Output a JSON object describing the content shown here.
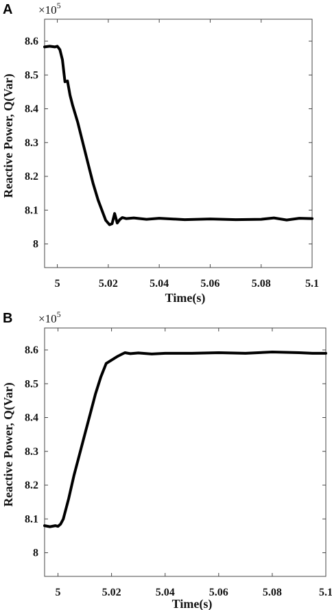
{
  "chart_data": [
    {
      "type": "line",
      "panel": "A",
      "multiplier": "×10",
      "multiplier_exp": "5",
      "xlabel": "Time(s)",
      "ylabel": "Reactive Power, Q(Var)",
      "xlim": [
        4.995,
        5.1
      ],
      "ylim": [
        7.93,
        8.665
      ],
      "xticks": [
        "5",
        "5.02",
        "5.04",
        "5.06",
        "5.08",
        "5.1"
      ],
      "xtick_values": [
        5.0,
        5.02,
        5.04,
        5.06,
        5.08,
        5.1
      ],
      "yticks": [
        "8",
        "8.1",
        "8.2",
        "8.3",
        "8.4",
        "8.5",
        "8.6"
      ],
      "ytick_values": [
        8.0,
        8.1,
        8.2,
        8.3,
        8.4,
        8.5,
        8.6
      ],
      "x": [
        4.995,
        4.997,
        4.999,
        5.0,
        5.001,
        5.002,
        5.003,
        5.004,
        5.005,
        5.006,
        5.008,
        5.01,
        5.012,
        5.014,
        5.016,
        5.018,
        5.019,
        5.0205,
        5.0215,
        5.0225,
        5.0235,
        5.0245,
        5.0255,
        5.027,
        5.03,
        5.035,
        5.04,
        5.05,
        5.06,
        5.07,
        5.08,
        5.085,
        5.09,
        5.095,
        5.1
      ],
      "values": [
        8.583,
        8.585,
        8.583,
        8.585,
        8.575,
        8.545,
        8.48,
        8.482,
        8.44,
        8.41,
        8.36,
        8.3,
        8.24,
        8.18,
        8.13,
        8.09,
        8.07,
        8.057,
        8.06,
        8.09,
        8.062,
        8.072,
        8.078,
        8.075,
        8.077,
        8.073,
        8.076,
        8.072,
        8.074,
        8.072,
        8.073,
        8.077,
        8.071,
        8.076,
        8.075
      ]
    },
    {
      "type": "line",
      "panel": "B",
      "multiplier": "×10",
      "multiplier_exp": "5",
      "xlabel": "Time(s)",
      "ylabel": "Reactive Power, Q(Var)",
      "xlim": [
        4.995,
        5.1
      ],
      "ylim": [
        7.93,
        8.665
      ],
      "xticks": [
        "5",
        "5.02",
        "5.04",
        "5.06",
        "5.08",
        "5.1"
      ],
      "xtick_values": [
        5.0,
        5.02,
        5.04,
        5.06,
        5.08,
        5.1
      ],
      "yticks": [
        "8",
        "8.1",
        "8.2",
        "8.3",
        "8.4",
        "8.5",
        "8.6"
      ],
      "ytick_values": [
        8.0,
        8.1,
        8.2,
        8.3,
        8.4,
        8.5,
        8.6
      ],
      "x": [
        4.995,
        4.997,
        4.999,
        5.0,
        5.001,
        5.002,
        5.004,
        5.006,
        5.008,
        5.01,
        5.012,
        5.014,
        5.016,
        5.018,
        5.02,
        5.022,
        5.024,
        5.025,
        5.027,
        5.03,
        5.035,
        5.04,
        5.05,
        5.06,
        5.07,
        5.08,
        5.09,
        5.095,
        5.1
      ],
      "values": [
        8.08,
        8.077,
        8.08,
        8.078,
        8.085,
        8.1,
        8.16,
        8.23,
        8.29,
        8.35,
        8.41,
        8.47,
        8.52,
        8.56,
        8.57,
        8.58,
        8.588,
        8.592,
        8.589,
        8.591,
        8.588,
        8.59,
        8.59,
        8.592,
        8.59,
        8.594,
        8.592,
        8.59,
        8.59
      ]
    }
  ]
}
